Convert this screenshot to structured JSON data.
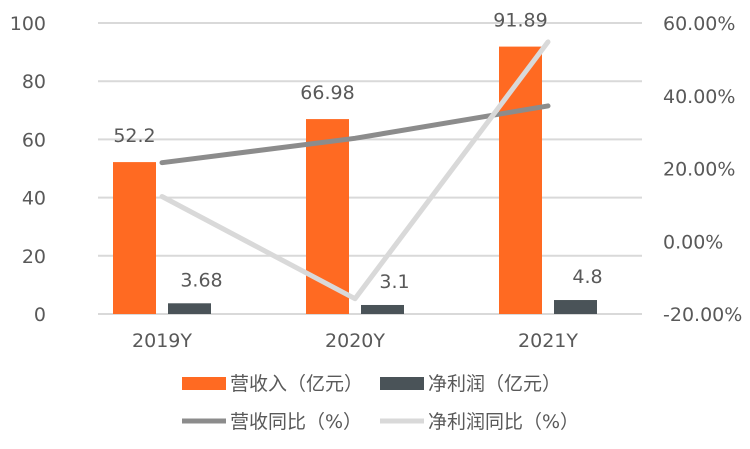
{
  "chart_data": {
    "type": "bar",
    "title": "",
    "categories": [
      "2019Y",
      "2020Y",
      "2021Y"
    ],
    "series": [
      {
        "name": "营收入（亿元）",
        "kind": "bar",
        "axis": "left",
        "color": "#FF6A22",
        "values": [
          52.2,
          66.98,
          91.89
        ],
        "labels": [
          "52.2",
          "66.98",
          "91.89"
        ]
      },
      {
        "name": "净利润（亿元）",
        "kind": "bar",
        "axis": "left",
        "color": "#4A5358",
        "values": [
          3.68,
          3.1,
          4.8
        ],
        "labels": [
          "3.68",
          "3.1",
          "4.8"
        ]
      },
      {
        "name": "营收同比（%）",
        "kind": "line",
        "axis": "right",
        "color": "#8C8C8C",
        "values": [
          21.6,
          28.3,
          37.2
        ]
      },
      {
        "name": "净利润同比（%）",
        "kind": "line",
        "axis": "right",
        "color": "#D9D9D9",
        "values": [
          12.3,
          -15.8,
          54.8
        ]
      }
    ],
    "left_axis": {
      "ylim": [
        0,
        100
      ],
      "ticks": [
        "0",
        "20",
        "40",
        "60",
        "80",
        "100"
      ]
    },
    "right_axis": {
      "ylim": [
        -20,
        60
      ],
      "ticks": [
        "-20.00%",
        "0.00%",
        "20.00%",
        "40.00%",
        "60.00%"
      ]
    },
    "grid": true,
    "legend_placement": "bottom"
  }
}
